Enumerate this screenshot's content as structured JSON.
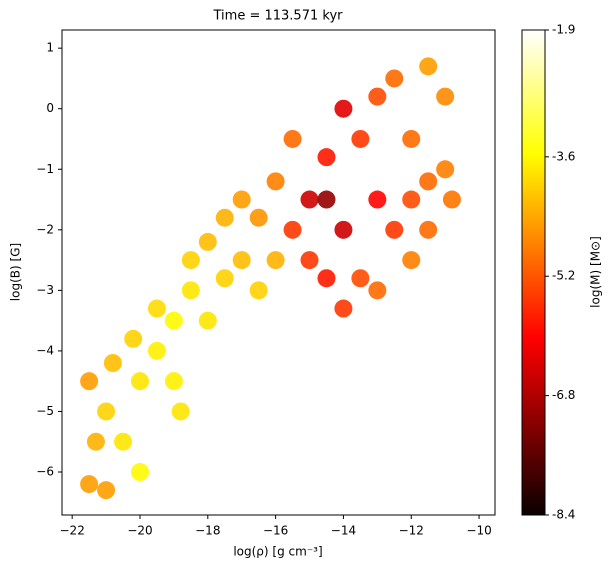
{
  "chart_data": {
    "type": "scatter",
    "title": "Time = 113.571 kyr",
    "x_label": "log(ρ) [g cm⁻³]",
    "y_label": "log(B) [G]",
    "colorbar_label": "log(M) [M⊙]",
    "colormap": "hot",
    "x": [
      -21.5,
      -21.3,
      -21,
      -20.5,
      -21.5,
      -20.8,
      -20,
      -20.2,
      -19.5,
      -19.5,
      -19,
      -19,
      -18.5,
      -18.5,
      -18,
      -18,
      -17.5,
      -17.5,
      -17,
      -17,
      -16.5,
      -16.5,
      -16,
      -16,
      -15.5,
      -15.5,
      -15,
      -15,
      -14.5,
      -14.5,
      -14.5,
      -14,
      -14,
      -14,
      -13.5,
      -13.5,
      -13,
      -13,
      -13,
      -12.5,
      -12.5,
      -12,
      -12,
      -11.5,
      -11.5,
      -11,
      -11,
      -10.8,
      -12,
      -11.5,
      -18.8,
      -20,
      -21
    ],
    "values": [
      -6.2,
      -5.5,
      -5,
      -5.5,
      -4.5,
      -4.2,
      -4.5,
      -3.8,
      -4,
      -3.3,
      -3.5,
      -4.5,
      -3,
      -2.5,
      -3.5,
      -2.2,
      -2.8,
      -1.8,
      -2.5,
      -1.5,
      -3,
      -1.8,
      -2.5,
      -1.2,
      -0.5,
      -2,
      -1.5,
      -2.5,
      -0.8,
      -2.8,
      -1.5,
      -2,
      0,
      -3.3,
      -0.5,
      -2.8,
      0.2,
      -1.5,
      -3,
      0.5,
      -2,
      -0.5,
      -2.5,
      0.7,
      -1.2,
      0.2,
      -1,
      -1.5,
      -1.5,
      -2,
      -5,
      -6,
      -6.3
    ],
    "c": [
      -4.5,
      -4.3,
      -4,
      -3.8,
      -4.5,
      -4.2,
      -3.8,
      -4,
      -3.7,
      -3.9,
      -3.6,
      -3.7,
      -3.8,
      -4,
      -3.8,
      -4.2,
      -4,
      -4.3,
      -4.2,
      -4.5,
      -4,
      -4.6,
      -4.3,
      -4.8,
      -5,
      -5.5,
      -6.5,
      -5.5,
      -5.8,
      -5.8,
      -7,
      -6.5,
      -6.3,
      -5.5,
      -5.5,
      -5.3,
      -5.3,
      -6,
      -5,
      -5,
      -5.5,
      -5,
      -4.8,
      -4.5,
      -5,
      -4.7,
      -4.8,
      -4.9,
      -5.3,
      -5,
      -3.8,
      -3.6,
      -4.5
    ],
    "xlim": [
      -22.3,
      -9.53
    ],
    "xticks": [
      {
        "value": -22,
        "label": "−22"
      },
      {
        "value": -20,
        "label": "−20"
      },
      {
        "value": -18,
        "label": "−18"
      },
      {
        "value": -16,
        "label": "−16"
      },
      {
        "value": -14,
        "label": "−14"
      },
      {
        "value": -12,
        "label": "−12"
      },
      {
        "value": -10,
        "label": "−10"
      }
    ],
    "ylim": [
      -6.71,
      1.3
    ],
    "yticks": [
      {
        "value": -6,
        "label": "−6"
      },
      {
        "value": -5,
        "label": "−5"
      },
      {
        "value": -4,
        "label": "−4"
      },
      {
        "value": -3,
        "label": "−3"
      },
      {
        "value": -2,
        "label": "−2"
      },
      {
        "value": -1,
        "label": "−1"
      },
      0,
      1
    ],
    "clim": [
      -8.4,
      -1.9
    ],
    "cticks": [
      -1.9,
      -3.6,
      -5.2,
      -6.8,
      -8.4
    ]
  }
}
